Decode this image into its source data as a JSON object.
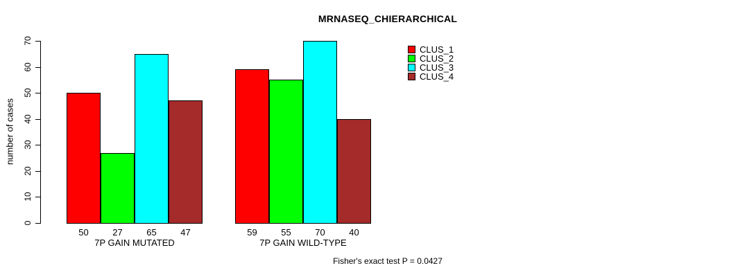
{
  "chart_data": {
    "type": "bar",
    "title": "MRNASEQ_CHIERARCHICAL",
    "categories": [
      "7P GAIN MUTATED",
      "7P GAIN WILD-TYPE"
    ],
    "series": [
      {
        "name": "CLUS_1",
        "color": "#FF0000",
        "values": [
          50,
          59
        ]
      },
      {
        "name": "CLUS_2",
        "color": "#00FF00",
        "values": [
          27,
          55
        ]
      },
      {
        "name": "CLUS_3",
        "color": "#00FFFF",
        "values": [
          65,
          70
        ]
      },
      {
        "name": "CLUS_4",
        "color": "#A52A2A",
        "values": [
          47,
          40
        ]
      }
    ],
    "xlabel": "",
    "ylabel": "number of cases",
    "ylim": [
      0,
      70
    ],
    "yticks": [
      0,
      10,
      20,
      30,
      40,
      50,
      60,
      70
    ],
    "bar_value_labels_shown": true,
    "grid": false,
    "legend_position": "top-right-inside",
    "annotation": "Fisher's exact test P = 0.0427"
  }
}
